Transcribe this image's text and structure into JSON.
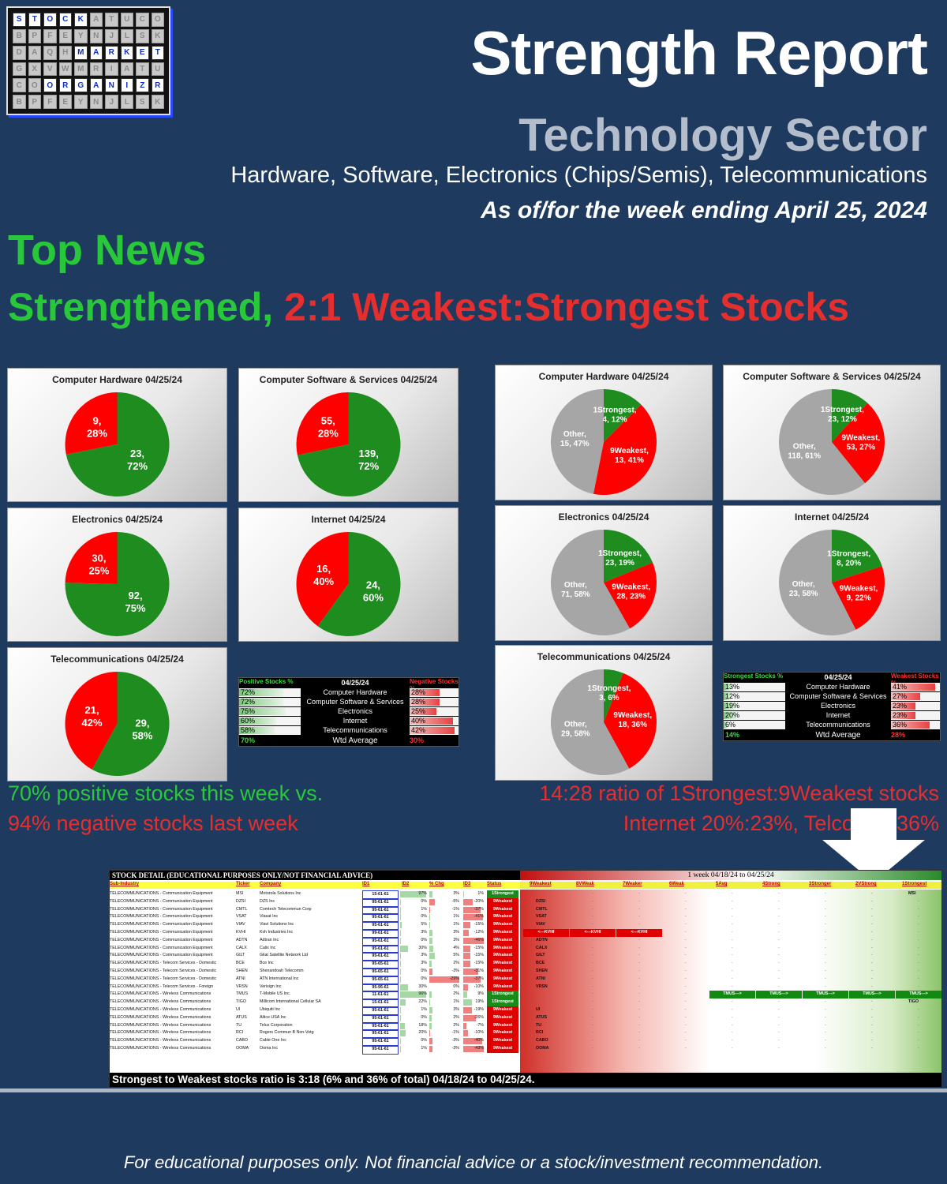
{
  "logo": {
    "cells": [
      [
        "S",
        "T",
        "O",
        "C",
        "K",
        "",
        "",
        "",
        "",
        ""
      ],
      [
        "",
        "",
        "",
        "",
        "",
        "",
        "",
        "",
        "",
        ""
      ],
      [
        "",
        "",
        "",
        "",
        "M",
        "A",
        "R",
        "K",
        "E",
        "T"
      ],
      [
        "",
        "",
        "",
        "",
        "",
        "",
        "",
        "",
        "",
        ""
      ],
      [
        "",
        "",
        "O",
        "R",
        "G",
        "A",
        "N",
        "I",
        "Z",
        "E"
      ],
      [
        "",
        "",
        "",
        "",
        "",
        "",
        "",
        "",
        "",
        ""
      ]
    ],
    "last": "R"
  },
  "header": {
    "title": "Strength Report",
    "sector": "Technology Sector",
    "subtitle": "Hardware, Software, Electronics (Chips/Semis), Telecommunications",
    "date": "As of/for the week ending April 25, 2024"
  },
  "news": {
    "label": "Top News",
    "headline_green": "Strengthened,",
    "headline_red": "2:1 Weakest:Strongest Stocks"
  },
  "colors": {
    "green": "#1e8c1e",
    "red": "#ff0000",
    "gray": "#a6a6a6"
  },
  "chart_data": [
    {
      "type": "pie",
      "title": "Computer Hardware 04/25/24",
      "slices": [
        {
          "label": "9,",
          "pct": "28%",
          "value": 9,
          "color": "red"
        },
        {
          "label": "23,",
          "pct": "72%",
          "value": 23,
          "color": "green"
        }
      ]
    },
    {
      "type": "pie",
      "title": "Computer Software & Services 04/25/24",
      "slices": [
        {
          "label": "55,",
          "pct": "28%",
          "value": 55,
          "color": "red"
        },
        {
          "label": "139,",
          "pct": "72%",
          "value": 139,
          "color": "green"
        }
      ]
    },
    {
      "type": "pie",
      "title": "Electronics 04/25/24",
      "slices": [
        {
          "label": "30,",
          "pct": "25%",
          "value": 30,
          "color": "red"
        },
        {
          "label": "92,",
          "pct": "75%",
          "value": 92,
          "color": "green"
        }
      ]
    },
    {
      "type": "pie",
      "title": "Internet 04/25/24",
      "slices": [
        {
          "label": "16,",
          "pct": "40%",
          "value": 16,
          "color": "red"
        },
        {
          "label": "24,",
          "pct": "60%",
          "value": 24,
          "color": "green"
        }
      ]
    },
    {
      "type": "pie",
      "title": "Telecommunications 04/25/24",
      "slices": [
        {
          "label": "21,",
          "pct": "42%",
          "value": 21,
          "color": "red"
        },
        {
          "label": "29,",
          "pct": "58%",
          "value": 29,
          "color": "green"
        }
      ]
    },
    {
      "type": "pie",
      "title": "Computer Hardware 04/25/24",
      "slices": [
        {
          "label": "1Strongest,",
          "pct": "4, 12%",
          "value": 4,
          "color": "green"
        },
        {
          "label": "9Weakest,",
          "pct": "13, 41%",
          "value": 13,
          "color": "red"
        },
        {
          "label": "Other,",
          "pct": "15, 47%",
          "value": 15,
          "color": "gray"
        }
      ]
    },
    {
      "type": "pie",
      "title": "Computer Software & Services 04/25/24",
      "slices": [
        {
          "label": "1Strongest,",
          "pct": "23, 12%",
          "value": 23,
          "color": "green"
        },
        {
          "label": "9Weakest,",
          "pct": "53, 27%",
          "value": 53,
          "color": "red"
        },
        {
          "label": "Other,",
          "pct": "118, 61%",
          "value": 118,
          "color": "gray"
        }
      ]
    },
    {
      "type": "pie",
      "title": "Electronics 04/25/24",
      "slices": [
        {
          "label": "1Strongest,",
          "pct": "23, 19%",
          "value": 23,
          "color": "green"
        },
        {
          "label": "9Weakest,",
          "pct": "28, 23%",
          "value": 28,
          "color": "red"
        },
        {
          "label": "Other,",
          "pct": "71, 58%",
          "value": 71,
          "color": "gray"
        }
      ]
    },
    {
      "type": "pie",
      "title": "Internet 04/25/24",
      "slices": [
        {
          "label": "1Strongest,",
          "pct": "8, 20%",
          "value": 8,
          "color": "green"
        },
        {
          "label": "9Weakest,",
          "pct": "9, 22%",
          "value": 9,
          "color": "red"
        },
        {
          "label": "Other,",
          "pct": "23, 58%",
          "value": 23,
          "color": "gray"
        }
      ]
    },
    {
      "type": "pie",
      "title": "Telecommunications 04/25/24",
      "slices": [
        {
          "label": "1Strongest,",
          "pct": "3, 6%",
          "value": 3,
          "color": "green"
        },
        {
          "label": "9Weakest,",
          "pct": "18, 36%",
          "value": 18,
          "color": "red"
        },
        {
          "label": "Other,",
          "pct": "29, 58%",
          "value": 29,
          "color": "gray"
        }
      ]
    }
  ],
  "summary_left": {
    "h1": "Positive Stocks %",
    "h2": "04/25/24",
    "h3": "Negative Stocks %",
    "rows": [
      {
        "a": "72%",
        "b": "Computer Hardware",
        "c": "28%",
        "av": 72,
        "cv": 28
      },
      {
        "a": "72%",
        "b": "Computer Software & Services",
        "c": "28%",
        "av": 72,
        "cv": 28
      },
      {
        "a": "75%",
        "b": "Electronics",
        "c": "25%",
        "av": 75,
        "cv": 25
      },
      {
        "a": "60%",
        "b": "Internet",
        "c": "40%",
        "av": 60,
        "cv": 40
      },
      {
        "a": "58%",
        "b": "Telecommunications",
        "c": "42%",
        "av": 58,
        "cv": 42
      }
    ],
    "total": {
      "a": "70%",
      "b": "Wtd Average",
      "c": "30%"
    }
  },
  "summary_right": {
    "h1": "Strongest Stocks %",
    "h2": "04/25/24",
    "h3": "Weakest Stocks %",
    "rows": [
      {
        "a": "13%",
        "b": "Computer Hardware",
        "c": "41%",
        "av": 13,
        "cv": 41
      },
      {
        "a": "12%",
        "b": "Computer Software & Services",
        "c": "27%",
        "av": 12,
        "cv": 27
      },
      {
        "a": "19%",
        "b": "Electronics",
        "c": "23%",
        "av": 19,
        "cv": 23
      },
      {
        "a": "20%",
        "b": "Internet",
        "c": "23%",
        "av": 20,
        "cv": 23
      },
      {
        "a": "6%",
        "b": "Telecommunications",
        "c": "36%",
        "av": 6,
        "cv": 36
      }
    ],
    "total": {
      "a": "14%",
      "b": "Wtd Average",
      "c": "28%"
    }
  },
  "captions": {
    "left1": "70% positive stocks this week vs.",
    "left2": "94% negative stocks last week",
    "right1": "14:28 ratio of 1Strongest:9Weakest stocks",
    "right2": "Internet 20%:23%, Telco 6%:36%"
  },
  "detail": {
    "title": "STOCK DETAIL (EDUCATIONAL PURPOSES ONLY/NOT FINANCIAL ADVICE)",
    "period": "1 week 04/18/24 to 04/25/24",
    "left_headers": [
      "Sub-Industry",
      "Ticker",
      "Company",
      "ID1",
      "ID2",
      "% Chg",
      "ID3",
      "Status"
    ],
    "right_headers": [
      "9Weakest",
      "8VWeak",
      "7Weaker",
      "6Weak",
      "5Avg",
      "4Strong",
      "3Stronger",
      "2VStrong",
      "1Strongest"
    ],
    "rows": [
      {
        "sub": "TELECOMMUNICATIONS - Communication Equipment",
        "t": "MSI",
        "co": "Motorola Solutions Inc",
        "id1": "15-61-61",
        "id2": "97%",
        "chg": "3%",
        "id3": "1%",
        "st": "1Strongest",
        "pos": 8,
        "wk": "MSI"
      },
      {
        "sub": "TELECOMMUNICATIONS - Communication Equipment",
        "t": "DZSI",
        "co": "DZS Inc",
        "id1": "95-61-61",
        "id2": "0%",
        "chg": "-5%",
        "id3": "-20%",
        "st": "9Weakest",
        "pos": 0,
        "wk": "DZSI"
      },
      {
        "sub": "TELECOMMUNICATIONS - Communication Equipment",
        "t": "CMTL",
        "co": "Comtech Telecommun Corp",
        "id1": "95-61-61",
        "id2": "1%",
        "chg": "-1%",
        "id3": "-37%",
        "st": "9Weakest",
        "pos": 0,
        "wk": "CMTL"
      },
      {
        "sub": "TELECOMMUNICATIONS - Communication Equipment",
        "t": "VSAT",
        "co": "Viasat Inc",
        "id1": "95-61-61",
        "id2": "0%",
        "chg": "1%",
        "id3": "-41%",
        "st": "9Weakest",
        "pos": 0,
        "wk": "VSAT"
      },
      {
        "sub": "TELECOMMUNICATIONS - Communication Equipment",
        "t": "VIAV",
        "co": "Viavi Solutions Inc",
        "id1": "95-61-61",
        "id2": "5%",
        "chg": "1%",
        "id3": "-15%",
        "st": "9Weakest",
        "pos": 0,
        "wk": "VIAV"
      },
      {
        "sub": "TELECOMMUNICATIONS - Communication Equipment",
        "t": "KVHI",
        "co": "Kvh Industries Inc",
        "id1": "99-61-61",
        "id2": "3%",
        "chg": "3%",
        "id3": "-12%",
        "st": "9Weakest",
        "pos": 0,
        "wk": "<---KVHI"
      },
      {
        "sub": "TELECOMMUNICATIONS - Communication Equipment",
        "t": "ADTN",
        "co": "Adtran Inc",
        "id1": "95-61-61",
        "id2": "0%",
        "chg": "3%",
        "id3": "-46%",
        "st": "9Weakest",
        "pos": 0,
        "wk": "ADTN"
      },
      {
        "sub": "TELECOMMUNICATIONS - Communication Equipment",
        "t": "CALX",
        "co": "Calix Inc",
        "id1": "95-61-61",
        "id2": "30%",
        "chg": "4%",
        "id3": "-15%",
        "st": "9Weakest",
        "pos": 0,
        "wk": "CALX"
      },
      {
        "sub": "TELECOMMUNICATIONS - Communication Equipment",
        "t": "GILT",
        "co": "Gilat Satellite Network Ltd",
        "id1": "95-61-61",
        "id2": "3%",
        "chg": "5%",
        "id3": "-15%",
        "st": "9Weakest",
        "pos": 0,
        "wk": "GILT"
      },
      {
        "sub": "TELECOMMUNICATIONS - Telecom Services - Domestic",
        "t": "BCE",
        "co": "Bce Inc",
        "id1": "95-65-61",
        "id2": "3%",
        "chg": "2%",
        "id3": "-15%",
        "st": "9Weakest",
        "pos": 0,
        "wk": "BCE"
      },
      {
        "sub": "TELECOMMUNICATIONS - Telecom Services - Domestic",
        "t": "SHEN",
        "co": "Shenandoah Telecomm",
        "id1": "95-65-61",
        "id2": "0%",
        "chg": "-3%",
        "id3": "-31%",
        "st": "9Weakest",
        "pos": 0,
        "wk": "SHEN"
      },
      {
        "sub": "TELECOMMUNICATIONS - Telecom Services - Domestic",
        "t": "ATNI",
        "co": "ATN International Inc",
        "id1": "95-65-61",
        "id2": "0%",
        "chg": "-29%",
        "id3": "-37%",
        "st": "9Weakest",
        "pos": 0,
        "wk": "ATNI"
      },
      {
        "sub": "TELECOMMUNICATIONS - Telecom Services - Foreign",
        "t": "VRSN",
        "co": "Verisign Inc",
        "id1": "95-95-61",
        "id2": "30%",
        "chg": "0%",
        "id3": "-10%",
        "st": "9Weakest",
        "pos": 0,
        "wk": "VRSN"
      },
      {
        "sub": "TELECOMMUNICATIONS - Wireless Communications",
        "t": "TMUS",
        "co": "T-Mobile US Inc.",
        "id1": "11-61-61",
        "id2": "96%",
        "chg": "2%",
        "id3": "9%",
        "st": "1Strongest",
        "pos": 8,
        "wk": "TMUS--->"
      },
      {
        "sub": "TELECOMMUNICATIONS - Wireless Communications",
        "t": "TIGO",
        "co": "Millicom International Cellular SA",
        "id1": "15-61-61",
        "id2": "22%",
        "chg": "1%",
        "id3": "19%",
        "st": "1Strongest",
        "pos": 8,
        "wk": "TIGO"
      },
      {
        "sub": "TELECOMMUNICATIONS - Wireless Communications",
        "t": "UI",
        "co": "Ubiquiti Inc",
        "id1": "95-61-61",
        "id2": "1%",
        "chg": "3%",
        "id3": "-19%",
        "st": "9Weakest",
        "pos": 0,
        "wk": "UI"
      },
      {
        "sub": "TELECOMMUNICATIONS - Wireless Communications",
        "t": "ATUS",
        "co": "Altice USA Inc",
        "id1": "95-61-61",
        "id2": "0%",
        "chg": "2%",
        "id3": "-26%",
        "st": "9Weakest",
        "pos": 0,
        "wk": "ATUS"
      },
      {
        "sub": "TELECOMMUNICATIONS - Wireless Communications",
        "t": "TU",
        "co": "Telus Corporation",
        "id1": "95-61-61",
        "id2": "18%",
        "chg": "2%",
        "id3": "-7%",
        "st": "9Weakest",
        "pos": 0,
        "wk": "TU"
      },
      {
        "sub": "TELECOMMUNICATIONS - Wireless Communications",
        "t": "RCI",
        "co": "Rogers Commun B Non-Votg",
        "id1": "95-61-61",
        "id2": "20%",
        "chg": "-1%",
        "id3": "-10%",
        "st": "9Weakest",
        "pos": 0,
        "wk": "RCI"
      },
      {
        "sub": "TELECOMMUNICATIONS - Wireless Communications",
        "t": "CABO",
        "co": "Cable One Inc",
        "id1": "95-61-61",
        "id2": "0%",
        "chg": "-3%",
        "id3": "-40%",
        "st": "9Weakest",
        "pos": 0,
        "wk": "CABO"
      },
      {
        "sub": "TELECOMMUNICATIONS - Wireless Communications",
        "t": "OOMA",
        "co": "Ooma Inc",
        "id1": "95-61-61",
        "id2": "1%",
        "chg": "-3%",
        "id3": "-43%",
        "st": "9Weakest",
        "pos": 0,
        "wk": "OOMA"
      }
    ],
    "footer": "Strongest to Weakest stocks ratio is 3:18 (6% and 36% of total) 04/18/24 to 04/25/24."
  },
  "footer": "For educational purposes only. Not financial advice or a stock/investment recommendation."
}
